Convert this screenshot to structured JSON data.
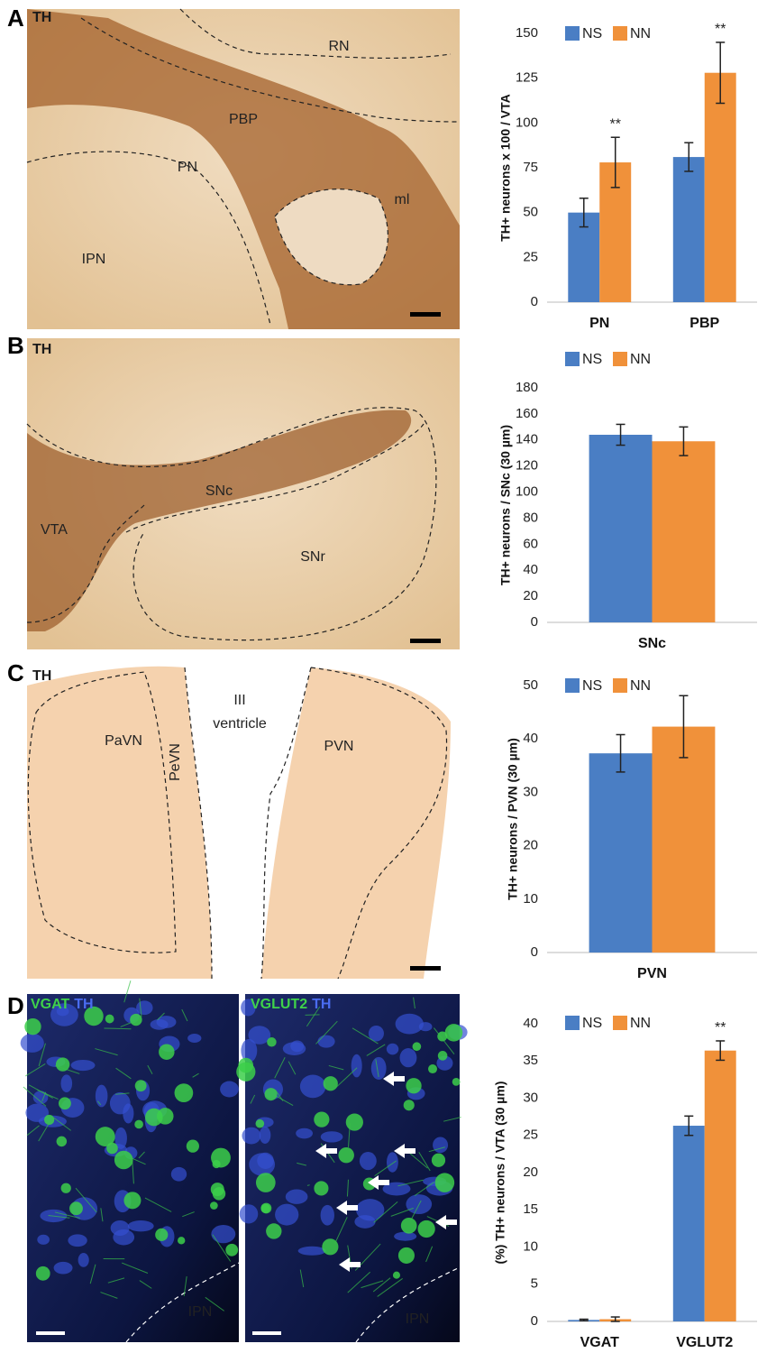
{
  "panels": [
    {
      "letter": "A",
      "images": [
        {
          "stain": [
            {
              "text": "TH",
              "color": "#1a1a1a"
            }
          ],
          "labels": [
            "RN",
            "PBP",
            "PN",
            "ml",
            "IPN"
          ]
        }
      ]
    },
    {
      "letter": "B",
      "images": [
        {
          "stain": [
            {
              "text": "TH",
              "color": "#1a1a1a"
            }
          ],
          "labels": [
            "SNc",
            "VTA",
            "SNr"
          ]
        }
      ]
    },
    {
      "letter": "C",
      "images": [
        {
          "stain": [
            {
              "text": "TH",
              "color": "#1a1a1a"
            }
          ],
          "labels": [
            "PaVN",
            "PeVN",
            "III",
            "ventricle",
            "PVN"
          ]
        }
      ]
    },
    {
      "letter": "D",
      "images": [
        {
          "stain": [
            {
              "text": "VGAT",
              "color": "#3fd24a"
            },
            {
              "text": "TH",
              "color": "#4a6cf0"
            }
          ],
          "labels": [
            "IPN"
          ]
        },
        {
          "stain": [
            {
              "text": "VGLUT2",
              "color": "#3fd24a"
            },
            {
              "text": "TH",
              "color": "#4a6cf0"
            }
          ],
          "labels": [
            "IPN"
          ]
        }
      ]
    }
  ],
  "chart_data": [
    {
      "type": "bar",
      "ylabel": "TH+ neurons x 100 / VTA",
      "categories": [
        "PN",
        "PBP"
      ],
      "series": [
        {
          "name": "NS",
          "color": "#4a7ec4",
          "values": [
            50,
            81
          ],
          "errors": [
            8,
            8
          ]
        },
        {
          "name": "NN",
          "color": "#f0913a",
          "values": [
            78,
            128
          ],
          "errors": [
            14,
            17
          ]
        }
      ],
      "ylim": [
        0,
        150
      ],
      "yticks": [
        0,
        25,
        50,
        75,
        100,
        125,
        150
      ],
      "annotations": [
        {
          "text": "**",
          "x": "PN"
        },
        {
          "text": "**",
          "x": "PBP"
        }
      ]
    },
    {
      "type": "bar",
      "ylabel": "TH+ neurons / SNc (30 µm)",
      "categories": [
        "SNc"
      ],
      "series": [
        {
          "name": "NS",
          "color": "#4a7ec4",
          "values": [
            144
          ],
          "errors": [
            8
          ]
        },
        {
          "name": "NN",
          "color": "#f0913a",
          "values": [
            139
          ],
          "errors": [
            11
          ]
        }
      ],
      "ylim": [
        0,
        180
      ],
      "yticks": [
        0,
        20,
        40,
        60,
        80,
        100,
        120,
        140,
        160,
        180
      ]
    },
    {
      "type": "bar",
      "ylabel": "TH+ neurons / PVN (30 µm)",
      "categories": [
        "PVN"
      ],
      "series": [
        {
          "name": "NS",
          "color": "#4a7ec4",
          "values": [
            37.3
          ],
          "errors": [
            3.5
          ]
        },
        {
          "name": "NN",
          "color": "#f0913a",
          "values": [
            42.3
          ],
          "errors": [
            5.8
          ]
        }
      ],
      "ylim": [
        0,
        50
      ],
      "yticks": [
        0,
        10,
        20,
        30,
        40,
        50
      ]
    },
    {
      "type": "bar",
      "ylabel": "(%) TH+ neurons / VTA (30 µm)",
      "categories": [
        "VGAT",
        "VGLUT2"
      ],
      "series": [
        {
          "name": "NS",
          "color": "#4a7ec4",
          "values": [
            0.2,
            26.3
          ],
          "errors": [
            0.1,
            1.3
          ]
        },
        {
          "name": "NN",
          "color": "#f0913a",
          "values": [
            0.3,
            36.4
          ],
          "errors": [
            0.3,
            1.3
          ]
        }
      ],
      "ylim": [
        0,
        40
      ],
      "yticks": [
        0,
        5,
        10,
        15,
        20,
        25,
        30,
        35,
        40
      ],
      "annotations": [
        {
          "text": "**",
          "x": "VGLUT2"
        }
      ]
    }
  ]
}
